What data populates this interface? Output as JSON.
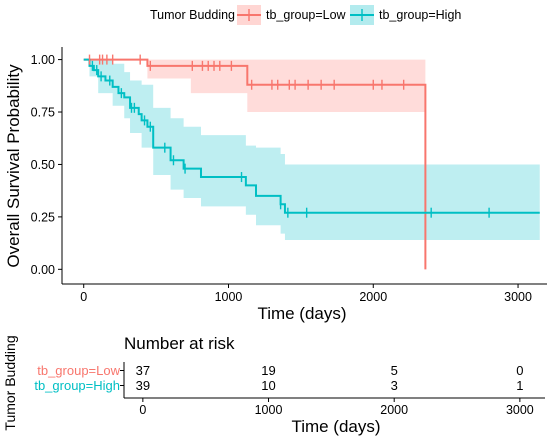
{
  "chart_data": [
    {
      "type": "line",
      "subtype": "kaplan-meier",
      "xlabel": "Time (days)",
      "ylabel": "Overall Survival Probability",
      "xlim": [
        -150,
        3200
      ],
      "ylim": [
        -0.07,
        1.06
      ],
      "xticks": [
        0,
        1000,
        2000,
        3000
      ],
      "xtick_labels": [
        "0",
        "1000",
        "2000",
        "3000"
      ],
      "yticks": [
        0,
        0.25,
        0.5,
        0.75,
        1
      ],
      "ytick_labels": [
        "0.00",
        "0.25",
        "0.50",
        "0.75",
        "1.00"
      ],
      "grid": false,
      "legend": {
        "title": "Tumor Budding",
        "position": "top",
        "entries": [
          "tb_group=Low",
          "tb_group=High"
        ]
      },
      "series": [
        {
          "name": "tb_group=Low",
          "color": "#F8766D",
          "band_color": "#FFD6D3",
          "steps": [
            {
              "x": 0,
              "y": 1.0
            },
            {
              "x": 440,
              "y": 0.97
            },
            {
              "x": 1130,
              "y": 0.88
            },
            {
              "x": 2360,
              "y": 0.0
            }
          ],
          "end_x": 2360,
          "ci_steps": [
            {
              "x": 0,
              "lower": 1.0,
              "upper": 1.0
            },
            {
              "x": 440,
              "lower": 0.91,
              "upper": 1.0
            },
            {
              "x": 740,
              "lower": 0.84,
              "upper": 1.0
            },
            {
              "x": 1130,
              "lower": 0.75,
              "upper": 1.0
            },
            {
              "x": 2360,
              "lower": 0.75,
              "upper": 1.0
            }
          ],
          "censor_times": [
            40,
            110,
            130,
            160,
            200,
            390,
            460,
            750,
            820,
            860,
            900,
            940,
            1020,
            1160,
            1300,
            1340,
            1420,
            1460,
            1550,
            1640,
            1730,
            2000,
            2060,
            2210
          ]
        },
        {
          "name": "tb_group=High",
          "color": "#00BFC4",
          "band_color": "#B3EBEE",
          "steps": [
            {
              "x": 0,
              "y": 1.0
            },
            {
              "x": 40,
              "y": 0.97
            },
            {
              "x": 70,
              "y": 0.95
            },
            {
              "x": 100,
              "y": 0.92
            },
            {
              "x": 150,
              "y": 0.9
            },
            {
              "x": 200,
              "y": 0.87
            },
            {
              "x": 240,
              "y": 0.84
            },
            {
              "x": 280,
              "y": 0.82
            },
            {
              "x": 320,
              "y": 0.77
            },
            {
              "x": 380,
              "y": 0.74
            },
            {
              "x": 400,
              "y": 0.71
            },
            {
              "x": 440,
              "y": 0.68
            },
            {
              "x": 480,
              "y": 0.58
            },
            {
              "x": 600,
              "y": 0.52
            },
            {
              "x": 690,
              "y": 0.48
            },
            {
              "x": 810,
              "y": 0.44
            },
            {
              "x": 1120,
              "y": 0.4
            },
            {
              "x": 1190,
              "y": 0.35
            },
            {
              "x": 1360,
              "y": 0.31
            },
            {
              "x": 1390,
              "y": 0.27
            }
          ],
          "end_x": 3150,
          "ci_steps": [
            {
              "x": 0,
              "lower": 1.0,
              "upper": 1.0
            },
            {
              "x": 40,
              "lower": 0.92,
              "upper": 1.0
            },
            {
              "x": 100,
              "lower": 0.84,
              "upper": 1.0
            },
            {
              "x": 200,
              "lower": 0.78,
              "upper": 0.98
            },
            {
              "x": 280,
              "lower": 0.72,
              "upper": 0.94
            },
            {
              "x": 320,
              "lower": 0.65,
              "upper": 0.9
            },
            {
              "x": 400,
              "lower": 0.58,
              "upper": 0.88
            },
            {
              "x": 480,
              "lower": 0.45,
              "upper": 0.77
            },
            {
              "x": 600,
              "lower": 0.38,
              "upper": 0.72
            },
            {
              "x": 690,
              "lower": 0.34,
              "upper": 0.68
            },
            {
              "x": 810,
              "lower": 0.3,
              "upper": 0.64
            },
            {
              "x": 1120,
              "lower": 0.26,
              "upper": 0.59
            },
            {
              "x": 1190,
              "lower": 0.21,
              "upper": 0.58
            },
            {
              "x": 1360,
              "lower": 0.17,
              "upper": 0.55
            },
            {
              "x": 1390,
              "lower": 0.14,
              "upper": 0.5
            },
            {
              "x": 3150,
              "lower": 0.14,
              "upper": 0.5
            }
          ],
          "censor_times": [
            60,
            90,
            120,
            180,
            260,
            330,
            350,
            420,
            460,
            560,
            620,
            700,
            1090,
            1360,
            1410,
            1540,
            2400,
            2800
          ]
        }
      ]
    },
    {
      "type": "table",
      "title": "Number at risk",
      "ylabel": "Tumor Budding",
      "xlabel": "Time (days)",
      "xlim": [
        -150,
        3200
      ],
      "xticks": [
        0,
        1000,
        2000,
        3000
      ],
      "xtick_labels": [
        "0",
        "1000",
        "2000",
        "3000"
      ],
      "rows": [
        {
          "label": "tb_group=Low",
          "color": "#F8766D",
          "values": [
            "37",
            "19",
            "5",
            "0"
          ]
        },
        {
          "label": "tb_group=High",
          "color": "#00BFC4",
          "values": [
            "39",
            "10",
            "3",
            "1"
          ]
        }
      ]
    }
  ]
}
